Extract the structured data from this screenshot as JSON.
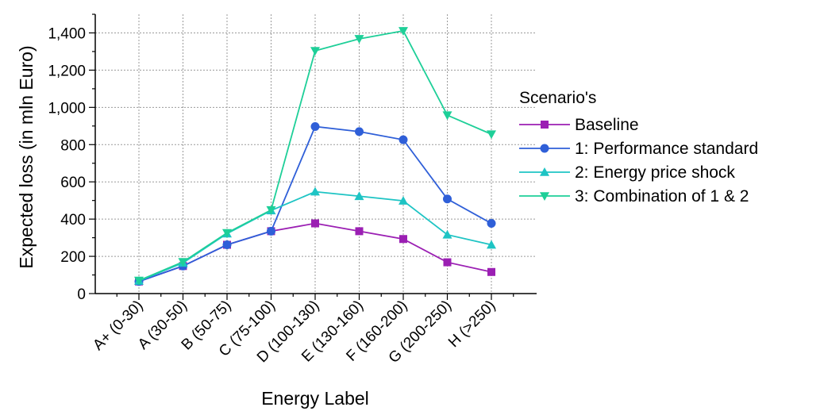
{
  "chart_data": {
    "type": "line",
    "xlabel": "Energy Label",
    "ylabel": "Expected loss (in mln Euro)",
    "categories": [
      "A+ (0-30)",
      "A (30-50)",
      "B (50-75)",
      "C (75-100)",
      "D (100-130)",
      "E (130-160)",
      "F (160-200)",
      "G (200-250)",
      "H (>250)"
    ],
    "ylim": [
      0,
      1500
    ],
    "yticks": [
      0,
      200,
      400,
      600,
      800,
      1000,
      1200,
      1400
    ],
    "ytick_labels": [
      "0",
      "200",
      "400",
      "600",
      "800",
      "1,000",
      "1,200",
      "1,400"
    ],
    "grid": true,
    "legend": {
      "title": "Scenario's",
      "placement": "right"
    },
    "series": [
      {
        "name": "Baseline",
        "color": "#9b1fb3",
        "marker": "square",
        "values": [
          65,
          148,
          262,
          335,
          377,
          335,
          293,
          168,
          116
        ]
      },
      {
        "name": "1: Performance standard",
        "color": "#2f5fd8",
        "marker": "circle",
        "values": [
          65,
          148,
          262,
          335,
          897,
          870,
          826,
          508,
          377
        ]
      },
      {
        "name": "2: Energy price shock",
        "color": "#1ec4c4",
        "marker": "triangle-up",
        "values": [
          68,
          165,
          322,
          446,
          547,
          523,
          498,
          316,
          262
        ]
      },
      {
        "name": "3: Combination of 1 & 2",
        "color": "#1ecf98",
        "marker": "triangle-down",
        "values": [
          70,
          170,
          326,
          449,
          1304,
          1368,
          1411,
          958,
          856
        ]
      }
    ]
  }
}
